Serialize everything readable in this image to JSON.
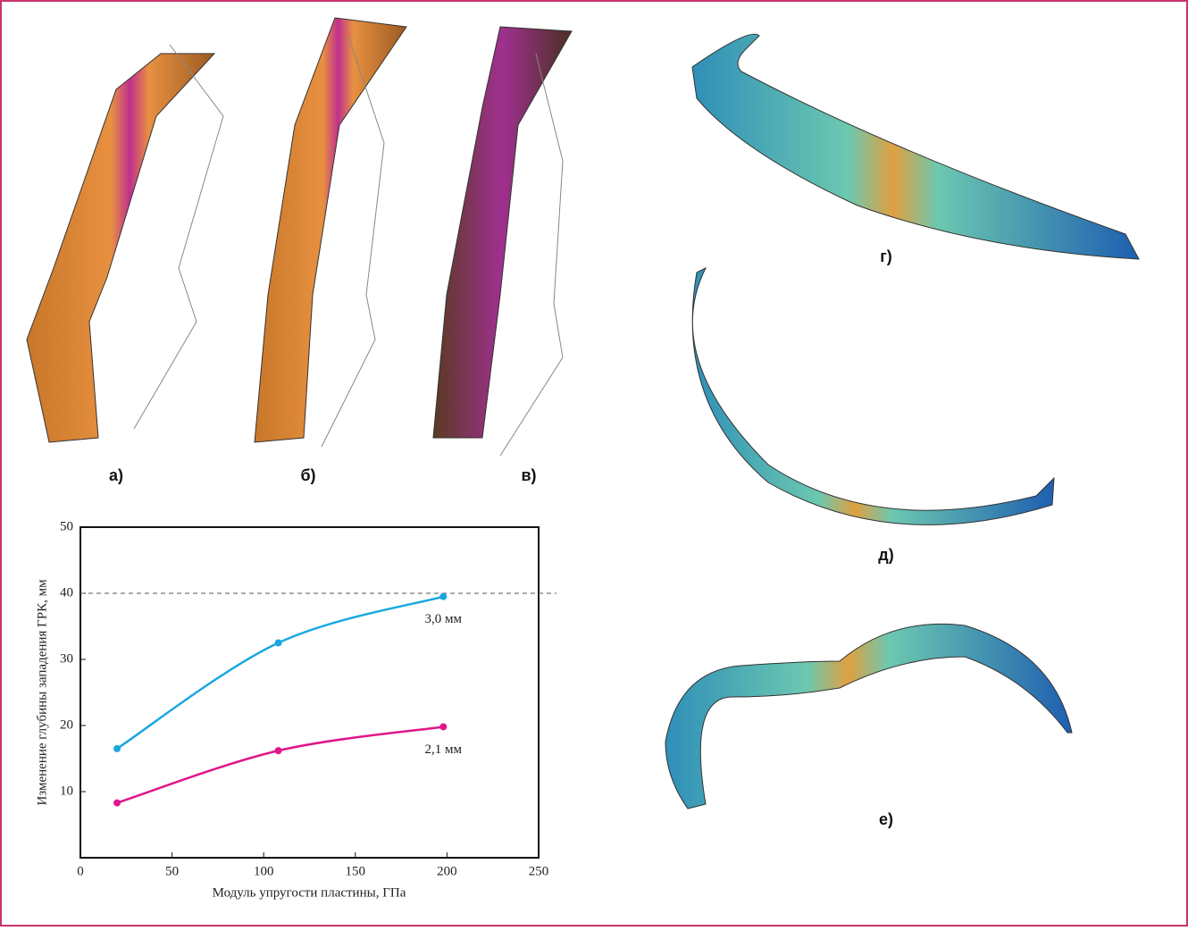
{
  "panels": [
    "а)",
    "б)",
    "в)",
    "г)",
    "д)",
    "е)"
  ],
  "chart_data": {
    "type": "line",
    "x_label": "Модуль упругости пластины, ГПа",
    "y_label": "Изменение глубины западения ГРК, мм",
    "xlim": [
      0,
      250
    ],
    "xticks": [
      0,
      50,
      100,
      150,
      200,
      250
    ],
    "ylim": [
      0,
      50
    ],
    "yticks": [
      10,
      20,
      30,
      40,
      50
    ],
    "reference_line": 40,
    "series": [
      {
        "name": "3,0 мм",
        "color": "#1aa7e0",
        "x": [
          20,
          108,
          198
        ],
        "values": [
          16.5,
          32.5,
          39.5
        ]
      },
      {
        "name": "2,1 мм",
        "color": "#e0168a",
        "x": [
          20,
          108,
          198
        ],
        "values": [
          8.3,
          16.2,
          19.8
        ]
      }
    ]
  }
}
